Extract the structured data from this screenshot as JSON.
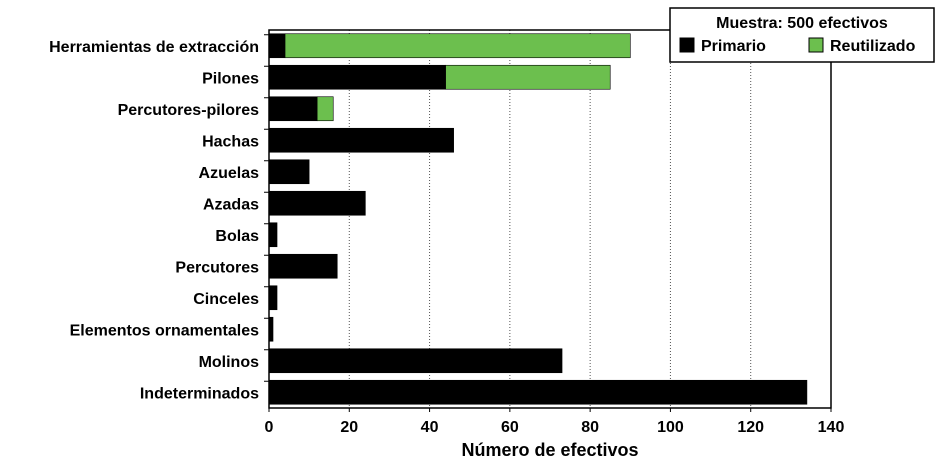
{
  "chart_data": {
    "type": "bar",
    "orientation": "horizontal",
    "stacked": true,
    "categories": [
      "Herramientas de extracción",
      "Pilones",
      "Percutores-pilores",
      "Hachas",
      "Azuelas",
      "Azadas",
      "Bolas",
      "Percutores",
      "Cinceles",
      "Elementos ornamentales",
      "Molinos",
      "Indeterminados"
    ],
    "series": [
      {
        "name": "Primario",
        "color": "#000000",
        "values": [
          4,
          44,
          12,
          46,
          10,
          24,
          2,
          17,
          2,
          1,
          73,
          134
        ]
      },
      {
        "name": "Reutilizado",
        "color": "#6cbf4e",
        "values": [
          86,
          41,
          4,
          0,
          0,
          0,
          0,
          0,
          0,
          0,
          0,
          0
        ]
      }
    ],
    "xlabel": "Número de efectivos",
    "xticks": [
      "0",
      "20",
      "40",
      "60",
      "80",
      "100",
      "120",
      "140"
    ],
    "xlim": [
      0,
      140
    ],
    "grid": "vertical dotted",
    "legend": {
      "title": "Muestra: 500 efectivos",
      "position": "top-right",
      "entries": [
        "Primario",
        "Reutilizado"
      ]
    }
  }
}
